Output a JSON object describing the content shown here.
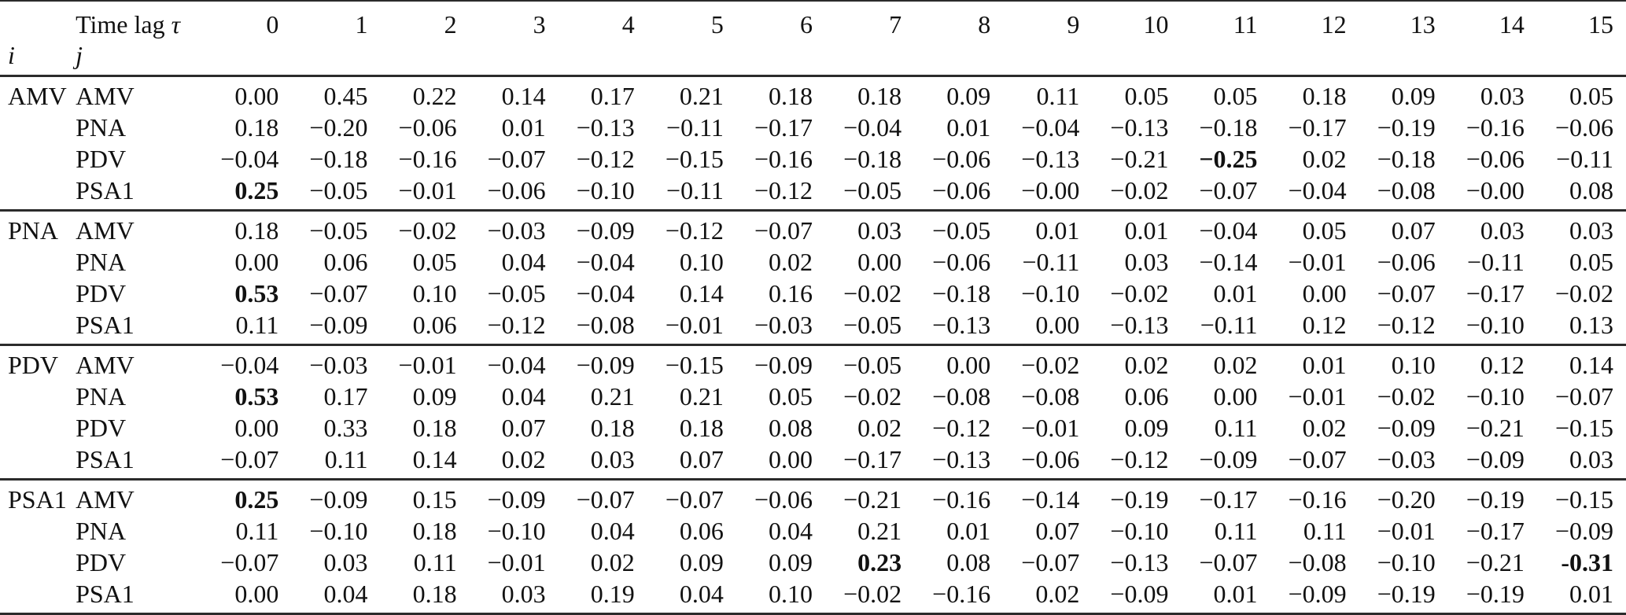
{
  "header": {
    "time_lag_label": "Time lag",
    "tau_symbol": "τ",
    "i_label": "i",
    "j_label": "j",
    "lags": [
      "0",
      "1",
      "2",
      "3",
      "4",
      "5",
      "6",
      "7",
      "8",
      "9",
      "10",
      "11",
      "12",
      "13",
      "14",
      "15"
    ]
  },
  "blocks": [
    {
      "i": "AMV",
      "rows": [
        {
          "j": "AMV",
          "values": [
            "0.00",
            "0.45",
            "0.22",
            "0.14",
            "0.17",
            "0.21",
            "0.18",
            "0.18",
            "0.09",
            "0.11",
            "0.05",
            "0.05",
            "0.18",
            "0.09",
            "0.03",
            "0.05"
          ],
          "bold": []
        },
        {
          "j": "PNA",
          "values": [
            "0.18",
            "−0.20",
            "−0.06",
            "0.01",
            "−0.13",
            "−0.11",
            "−0.17",
            "−0.04",
            "0.01",
            "−0.04",
            "−0.13",
            "−0.18",
            "−0.17",
            "−0.19",
            "−0.16",
            "−0.06"
          ],
          "bold": []
        },
        {
          "j": "PDV",
          "values": [
            "−0.04",
            "−0.18",
            "−0.16",
            "−0.07",
            "−0.12",
            "−0.15",
            "−0.16",
            "−0.18",
            "−0.06",
            "−0.13",
            "−0.21",
            "−0.25",
            "0.02",
            "−0.18",
            "−0.06",
            "−0.11"
          ],
          "bold": [
            11
          ]
        },
        {
          "j": "PSA1",
          "values": [
            "0.25",
            "−0.05",
            "−0.01",
            "−0.06",
            "−0.10",
            "−0.11",
            "−0.12",
            "−0.05",
            "−0.06",
            "−0.00",
            "−0.02",
            "−0.07",
            "−0.04",
            "−0.08",
            "−0.00",
            "0.08"
          ],
          "bold": [
            0
          ]
        }
      ]
    },
    {
      "i": "PNA",
      "rows": [
        {
          "j": "AMV",
          "values": [
            "0.18",
            "−0.05",
            "−0.02",
            "−0.03",
            "−0.09",
            "−0.12",
            "−0.07",
            "0.03",
            "−0.05",
            "0.01",
            "0.01",
            "−0.04",
            "0.05",
            "0.07",
            "0.03",
            "0.03"
          ],
          "bold": []
        },
        {
          "j": "PNA",
          "values": [
            "0.00",
            "0.06",
            "0.05",
            "0.04",
            "−0.04",
            "0.10",
            "0.02",
            "0.00",
            "−0.06",
            "−0.11",
            "0.03",
            "−0.14",
            "−0.01",
            "−0.06",
            "−0.11",
            "0.05"
          ],
          "bold": []
        },
        {
          "j": "PDV",
          "values": [
            "0.53",
            "−0.07",
            "0.10",
            "−0.05",
            "−0.04",
            "0.14",
            "0.16",
            "−0.02",
            "−0.18",
            "−0.10",
            "−0.02",
            "0.01",
            "0.00",
            "−0.07",
            "−0.17",
            "−0.02"
          ],
          "bold": [
            0
          ]
        },
        {
          "j": "PSA1",
          "values": [
            "0.11",
            "−0.09",
            "0.06",
            "−0.12",
            "−0.08",
            "−0.01",
            "−0.03",
            "−0.05",
            "−0.13",
            "0.00",
            "−0.13",
            "−0.11",
            "0.12",
            "−0.12",
            "−0.10",
            "0.13"
          ],
          "bold": []
        }
      ]
    },
    {
      "i": "PDV",
      "rows": [
        {
          "j": "AMV",
          "values": [
            "−0.04",
            "−0.03",
            "−0.01",
            "−0.04",
            "−0.09",
            "−0.15",
            "−0.09",
            "−0.05",
            "0.00",
            "−0.02",
            "0.02",
            "0.02",
            "0.01",
            "0.10",
            "0.12",
            "0.14"
          ],
          "bold": []
        },
        {
          "j": "PNA",
          "values": [
            "0.53",
            "0.17",
            "0.09",
            "0.04",
            "0.21",
            "0.21",
            "0.05",
            "−0.02",
            "−0.08",
            "−0.08",
            "0.06",
            "0.00",
            "−0.01",
            "−0.02",
            "−0.10",
            "−0.07"
          ],
          "bold": [
            0
          ]
        },
        {
          "j": "PDV",
          "values": [
            "0.00",
            "0.33",
            "0.18",
            "0.07",
            "0.18",
            "0.18",
            "0.08",
            "0.02",
            "−0.12",
            "−0.01",
            "0.09",
            "0.11",
            "0.02",
            "−0.09",
            "−0.21",
            "−0.15"
          ],
          "bold": []
        },
        {
          "j": "PSA1",
          "values": [
            "−0.07",
            "0.11",
            "0.14",
            "0.02",
            "0.03",
            "0.07",
            "0.00",
            "−0.17",
            "−0.13",
            "−0.06",
            "−0.12",
            "−0.09",
            "−0.07",
            "−0.03",
            "−0.09",
            "0.03"
          ],
          "bold": []
        }
      ]
    },
    {
      "i": "PSA1",
      "rows": [
        {
          "j": "AMV",
          "values": [
            "0.25",
            "−0.09",
            "0.15",
            "−0.09",
            "−0.07",
            "−0.07",
            "−0.06",
            "−0.21",
            "−0.16",
            "−0.14",
            "−0.19",
            "−0.17",
            "−0.16",
            "−0.20",
            "−0.19",
            "−0.15"
          ],
          "bold": [
            0
          ]
        },
        {
          "j": "PNA",
          "values": [
            "0.11",
            "−0.10",
            "0.18",
            "−0.10",
            "0.04",
            "0.06",
            "0.04",
            "0.21",
            "0.01",
            "0.07",
            "−0.10",
            "0.11",
            "0.11",
            "−0.01",
            "−0.17",
            "−0.09"
          ],
          "bold": []
        },
        {
          "j": "PDV",
          "values": [
            "−0.07",
            "0.03",
            "0.11",
            "−0.01",
            "0.02",
            "0.09",
            "0.09",
            "0.23",
            "0.08",
            "−0.07",
            "−0.13",
            "−0.07",
            "−0.08",
            "−0.10",
            "−0.21",
            "-0.31"
          ],
          "bold": [
            7,
            15
          ]
        },
        {
          "j": "PSA1",
          "values": [
            "0.00",
            "0.04",
            "0.18",
            "0.03",
            "0.19",
            "0.04",
            "0.10",
            "−0.02",
            "−0.16",
            "0.02",
            "−0.09",
            "0.01",
            "−0.09",
            "−0.19",
            "−0.19",
            "0.01"
          ],
          "bold": []
        }
      ]
    }
  ]
}
